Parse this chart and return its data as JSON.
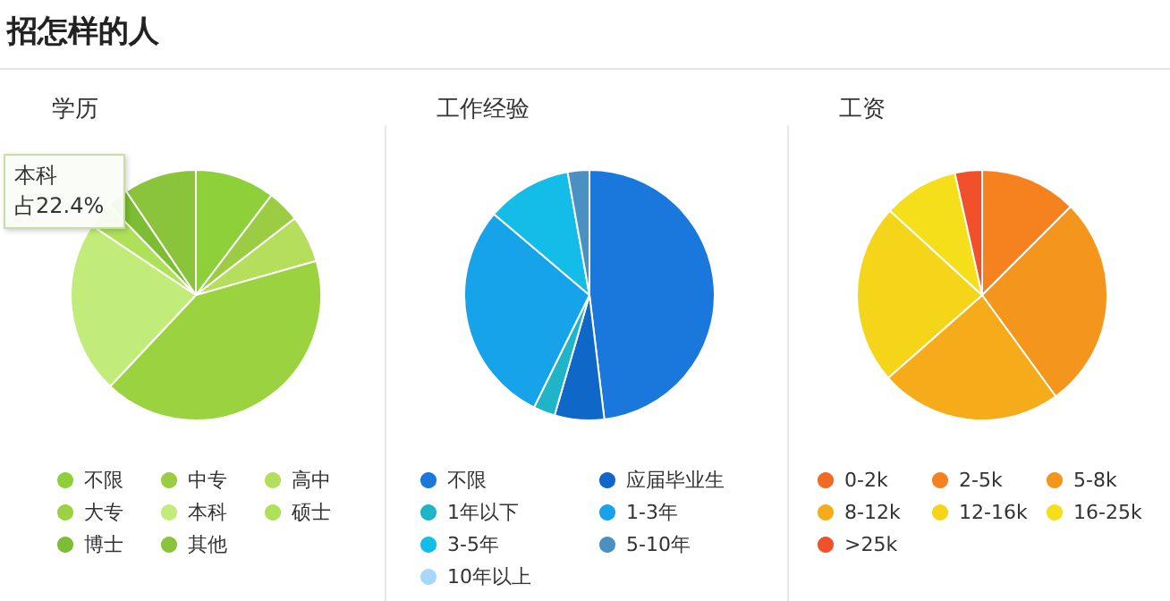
{
  "chart_data": [
    {
      "type": "other",
      "title": "招怎样的人"
    },
    {
      "type": "pie",
      "title": "学历",
      "legend": "bottom",
      "annotations": [
        "本科",
        "占22.4%"
      ],
      "categories": [
        "不限",
        "中专",
        "高中",
        "大专",
        "本科",
        "硕士",
        "博士",
        "其他"
      ],
      "values": [
        10.3,
        4.2,
        6.1,
        41.4,
        22.4,
        3.4,
        2.8,
        9.4
      ],
      "colors": [
        "#8dd03a",
        "#9ccc44",
        "#b5de5c",
        "#9ad240",
        "#c2ec7a",
        "#aee05a",
        "#7cbd33",
        "#8ac43b"
      ]
    },
    {
      "type": "pie",
      "title": "工作经验",
      "legend": "bottom",
      "categories": [
        "不限",
        "应届毕业生",
        "1年以下",
        "1-3年",
        "3-5年",
        "5-10年",
        "10年以上"
      ],
      "values": [
        48.1,
        6.4,
        2.8,
        28.9,
        11.0,
        2.8,
        0
      ],
      "colors": [
        "#1a78dc",
        "#0f68c8",
        "#1fb4c8",
        "#16a3ea",
        "#14bde8",
        "#4a90c2",
        "#a8d8f8"
      ]
    },
    {
      "type": "pie",
      "title": "工资",
      "legend": "bottom",
      "categories": [
        "0-2k",
        "2-5k",
        "5-8k",
        "8-12k",
        "12-16k",
        "16-25k",
        ">25k"
      ],
      "values": [
        0,
        12.5,
        27.5,
        23.5,
        23.3,
        9.7,
        3.5
      ],
      "colors": [
        "#f06a22",
        "#f5821f",
        "#f5961c",
        "#f5ab1a",
        "#f5d51a",
        "#f5df1a",
        "#f0502a"
      ]
    }
  ]
}
